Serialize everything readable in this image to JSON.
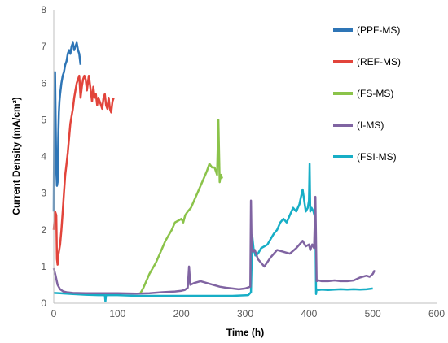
{
  "chart_data": {
    "type": "line",
    "title": "",
    "xlabel": "Time (h)",
    "ylabel": "Current Density (mA/cm²)",
    "xlim": [
      0,
      600
    ],
    "ylim": [
      0,
      8
    ],
    "xticks": [
      "0",
      "100",
      "200",
      "300",
      "400",
      "500",
      "600"
    ],
    "yticks": [
      "0",
      "1",
      "2",
      "3",
      "4",
      "5",
      "6",
      "7",
      "8"
    ],
    "grid": false,
    "legend_position": "right",
    "series": [
      {
        "name": "(PPF-MS)",
        "color": "#2E75B6",
        "x": [
          0,
          1,
          2,
          3,
          4,
          5,
          6,
          7,
          8,
          9,
          10,
          12,
          14,
          16,
          18,
          20,
          22,
          24,
          26,
          28,
          30,
          32,
          34,
          36,
          38,
          40,
          42
        ],
        "y": [
          2.5,
          6.2,
          6.3,
          5.0,
          3.6,
          3.2,
          3.3,
          4.5,
          5.2,
          5.5,
          5.7,
          6.0,
          6.2,
          6.3,
          6.5,
          6.6,
          6.8,
          6.9,
          6.8,
          7.0,
          7.1,
          6.9,
          7.0,
          7.1,
          6.9,
          6.8,
          6.5
        ]
      },
      {
        "name": "(REF-MS)",
        "color": "#E2443B",
        "x": [
          0,
          2,
          4,
          5,
          6,
          7,
          8,
          10,
          12,
          14,
          16,
          18,
          20,
          22,
          24,
          26,
          28,
          30,
          32,
          34,
          36,
          38,
          40,
          42,
          44,
          46,
          48,
          50,
          52,
          55,
          58,
          60,
          62,
          64,
          66,
          68,
          70,
          72,
          74,
          76,
          78,
          80,
          82,
          84,
          86,
          88,
          90,
          92,
          94
        ],
        "y": [
          2.0,
          2.5,
          2.4,
          1.2,
          1.05,
          1.3,
          1.4,
          1.6,
          2.0,
          2.5,
          3.0,
          3.5,
          3.8,
          4.1,
          4.5,
          4.9,
          5.1,
          5.3,
          5.6,
          5.8,
          6.0,
          6.1,
          6.2,
          5.6,
          5.9,
          6.1,
          6.2,
          6.1,
          5.8,
          6.2,
          5.8,
          5.5,
          5.9,
          5.6,
          5.7,
          5.4,
          5.6,
          5.5,
          5.4,
          5.3,
          5.6,
          5.7,
          5.4,
          5.3,
          5.6,
          5.3,
          5.2,
          5.5,
          5.6
        ]
      },
      {
        "name": "(FS-MS)",
        "color": "#8BC34A",
        "x": [
          136,
          140,
          145,
          150,
          155,
          160,
          165,
          170,
          175,
          180,
          185,
          190,
          195,
          200,
          203,
          206,
          210,
          215,
          220,
          225,
          230,
          235,
          240,
          244,
          248,
          252,
          256,
          258,
          260,
          262,
          264
        ],
        "y": [
          0.28,
          0.4,
          0.6,
          0.8,
          0.95,
          1.1,
          1.3,
          1.5,
          1.7,
          1.85,
          2.0,
          2.2,
          2.25,
          2.3,
          2.2,
          2.4,
          2.5,
          2.6,
          2.8,
          3.0,
          3.2,
          3.4,
          3.6,
          3.8,
          3.7,
          3.7,
          3.5,
          5.0,
          3.3,
          3.5,
          3.4
        ]
      },
      {
        "name": "(I-MS)",
        "color": "#8064A2",
        "x": [
          0,
          3,
          6,
          10,
          15,
          20,
          30,
          50,
          80,
          100,
          130,
          150,
          170,
          190,
          200,
          205,
          210,
          212,
          214,
          220,
          230,
          240,
          250,
          260,
          270,
          280,
          290,
          300,
          308,
          309,
          310,
          312,
          315,
          320,
          330,
          340,
          350,
          360,
          370,
          380,
          385,
          390,
          395,
          400,
          402,
          405,
          408,
          410,
          412,
          415,
          420,
          430,
          440,
          450,
          460,
          470,
          480,
          490,
          495,
          500,
          503
        ],
        "y": [
          0.95,
          0.75,
          0.5,
          0.38,
          0.32,
          0.3,
          0.28,
          0.27,
          0.27,
          0.27,
          0.26,
          0.27,
          0.3,
          0.32,
          0.34,
          0.36,
          0.42,
          1.0,
          0.5,
          0.55,
          0.6,
          0.55,
          0.5,
          0.45,
          0.42,
          0.4,
          0.38,
          0.4,
          0.45,
          2.8,
          1.7,
          1.4,
          1.45,
          1.2,
          1.0,
          1.25,
          1.45,
          1.4,
          1.35,
          1.5,
          1.6,
          1.7,
          1.55,
          1.6,
          1.45,
          1.6,
          1.5,
          2.9,
          0.6,
          0.62,
          0.6,
          0.6,
          0.62,
          0.6,
          0.6,
          0.62,
          0.7,
          0.75,
          0.72,
          0.8,
          0.9
        ]
      },
      {
        "name": "(FSI-MS)",
        "color": "#17AEC6",
        "x": [
          0,
          10,
          30,
          50,
          70,
          80,
          81,
          82,
          84,
          100,
          130,
          160,
          200,
          240,
          280,
          305,
          309,
          310,
          311,
          313,
          316,
          320,
          325,
          330,
          335,
          340,
          345,
          350,
          355,
          360,
          365,
          370,
          375,
          380,
          385,
          390,
          395,
          398,
          400,
          401,
          402,
          404,
          407,
          410,
          411,
          412,
          415,
          420,
          430,
          440,
          450,
          460,
          470,
          480,
          490,
          500
        ],
        "y": [
          0.28,
          0.27,
          0.25,
          0.23,
          0.22,
          0.22,
          0.05,
          0.22,
          0.22,
          0.22,
          0.2,
          0.2,
          0.2,
          0.2,
          0.2,
          0.22,
          0.3,
          1.0,
          1.85,
          1.5,
          1.3,
          1.35,
          1.5,
          1.55,
          1.6,
          1.75,
          1.9,
          2.0,
          2.2,
          2.3,
          2.2,
          2.4,
          2.6,
          2.5,
          2.7,
          3.1,
          2.5,
          2.6,
          2.8,
          3.8,
          2.5,
          2.6,
          2.5,
          2.3,
          0.25,
          0.38,
          0.36,
          0.37,
          0.36,
          0.37,
          0.38,
          0.37,
          0.38,
          0.37,
          0.38,
          0.4
        ]
      }
    ]
  }
}
